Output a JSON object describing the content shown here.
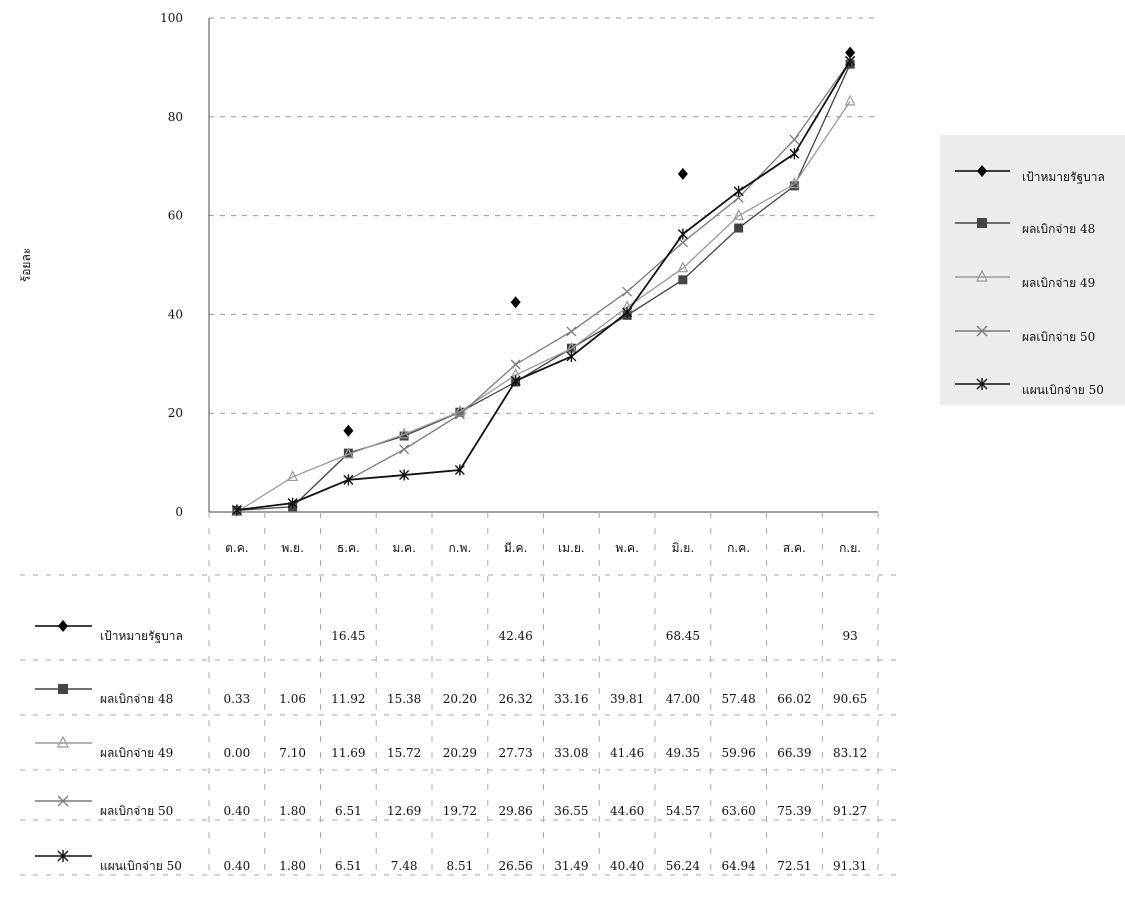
{
  "chart_data": {
    "type": "line",
    "ylabel": "ร้อยละ",
    "ylim": [
      0,
      100
    ],
    "yticks": [
      0,
      20,
      40,
      60,
      80,
      100
    ],
    "categories": [
      "ต.ค.",
      "พ.ย.",
      "ธ.ค.",
      "ม.ค.",
      "ก.พ.",
      "มี.ค.",
      "เม.ย.",
      "พ.ค.",
      "มิ.ย.",
      "ก.ค.",
      "ส.ค.",
      "ก.ย."
    ],
    "legend_position": "right",
    "grid": "dashed",
    "series": [
      {
        "name": "เป้าหมายรัฐบาล",
        "marker": "diamond",
        "line": false,
        "color": "#000000",
        "values": [
          null,
          null,
          16.45,
          null,
          null,
          42.46,
          null,
          null,
          68.45,
          null,
          null,
          93
        ],
        "labels": [
          "",
          "",
          "16.45",
          "",
          "",
          "42.46",
          "",
          "",
          "68.45",
          "",
          "",
          "93"
        ]
      },
      {
        "name": "ผลเบิกจ่าย 48",
        "marker": "square",
        "line": true,
        "color": "#444444",
        "values": [
          0.33,
          1.06,
          11.92,
          15.38,
          20.2,
          26.32,
          33.16,
          39.81,
          47.0,
          57.48,
          66.02,
          90.65
        ],
        "labels": [
          "0.33",
          "1.06",
          "11.92",
          "15.38",
          "20.20",
          "26.32",
          "33.16",
          "39.81",
          "47.00",
          "57.48",
          "66.02",
          "90.65"
        ]
      },
      {
        "name": "ผลเบิกจ่าย 49",
        "marker": "triangle",
        "line": true,
        "color": "#9a9a9a",
        "values": [
          0.0,
          7.1,
          11.69,
          15.72,
          20.29,
          27.73,
          33.08,
          41.46,
          49.35,
          59.96,
          66.39,
          83.12
        ],
        "labels": [
          "0.00",
          "7.10",
          "11.69",
          "15.72",
          "20.29",
          "27.73",
          "33.08",
          "41.46",
          "49.35",
          "59.96",
          "66.39",
          "83.12"
        ]
      },
      {
        "name": "ผลเบิกจ่าย 50",
        "marker": "x",
        "line": true,
        "color": "#7a7a7a",
        "values": [
          0.4,
          1.8,
          6.51,
          12.69,
          19.72,
          29.86,
          36.55,
          44.6,
          54.57,
          63.6,
          75.39,
          91.27
        ],
        "labels": [
          "0.40",
          "1.80",
          "6.51",
          "12.69",
          "19.72",
          "29.86",
          "36.55",
          "44.60",
          "54.57",
          "63.60",
          "75.39",
          "91.27"
        ]
      },
      {
        "name": "แผนเบิกจ่าย 50",
        "marker": "asterisk",
        "line": true,
        "color": "#111111",
        "values": [
          0.4,
          1.8,
          6.51,
          7.48,
          8.51,
          26.56,
          31.49,
          40.4,
          56.24,
          64.94,
          72.51,
          91.31
        ],
        "labels": [
          "0.40",
          "1.80",
          "6.51",
          "7.48",
          "8.51",
          "26.56",
          "31.49",
          "40.40",
          "56.24",
          "64.94",
          "72.51",
          "91.31"
        ]
      }
    ]
  }
}
